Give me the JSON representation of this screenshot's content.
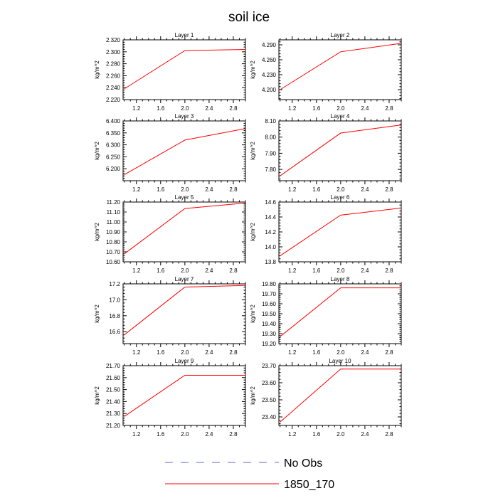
{
  "title": "soil ice",
  "colors": {
    "series": "#ff0000",
    "obs": "#6a6ac8",
    "axis": "#000000"
  },
  "legend": [
    {
      "label": "No Obs",
      "style": "dashed",
      "color": "#6a6ac8"
    },
    {
      "label": "1850_170",
      "style": "solid",
      "color": "#ff0000"
    }
  ],
  "chart_data": [
    {
      "type": "line",
      "title": "Layer 1",
      "ylabel": "kg/m^2",
      "x": [
        1,
        2,
        3
      ],
      "xlim": [
        0.98,
        3.0
      ],
      "xticks": [
        "1.2",
        "1.6",
        "2.0",
        "2.4",
        "2.8"
      ],
      "ylim": [
        2.22,
        2.32
      ],
      "yticks": [
        "2.220",
        "2.240",
        "2.260",
        "2.280",
        "2.300",
        "2.320"
      ],
      "series": [
        {
          "values": [
            2.238,
            2.302,
            2.304
          ]
        }
      ]
    },
    {
      "type": "line",
      "title": "Layer 2",
      "ylabel": "kg/m^2",
      "x": [
        1,
        2,
        3
      ],
      "xlim": [
        0.98,
        3.0
      ],
      "xticks": [
        "1.2",
        "1.6",
        "2.0",
        "2.4",
        "2.8"
      ],
      "ylim": [
        4.18,
        4.3
      ],
      "yticks": [
        "4.200",
        "4.230",
        "4.260",
        "4.290"
      ],
      "series": [
        {
          "values": [
            4.2,
            4.276,
            4.293
          ]
        }
      ]
    },
    {
      "type": "line",
      "title": "Layer 3",
      "ylabel": "kg/m^2",
      "x": [
        1,
        2,
        3
      ],
      "xlim": [
        0.98,
        3.0
      ],
      "xticks": [
        "1.2",
        "1.6",
        "2.0",
        "2.4",
        "2.8"
      ],
      "ylim": [
        6.15,
        6.4
      ],
      "yticks": [
        "6.200",
        "6.250",
        "6.300",
        "6.350",
        "6.400"
      ],
      "series": [
        {
          "values": [
            6.175,
            6.32,
            6.368
          ]
        }
      ]
    },
    {
      "type": "line",
      "title": "Layer 4",
      "ylabel": "kg/m^2",
      "x": [
        1,
        2,
        3
      ],
      "xlim": [
        0.98,
        3.0
      ],
      "xticks": [
        "1.2",
        "1.6",
        "2.0",
        "2.4",
        "2.8"
      ],
      "ylim": [
        7.73,
        8.1
      ],
      "yticks": [
        "7.80",
        "7.90",
        "8.00",
        "8.10"
      ],
      "series": [
        {
          "values": [
            7.76,
            8.025,
            8.075
          ]
        }
      ]
    },
    {
      "type": "line",
      "title": "Layer 5",
      "ylabel": "kg/m^2",
      "x": [
        1,
        2,
        3
      ],
      "xlim": [
        0.98,
        3.0
      ],
      "xticks": [
        "1.2",
        "1.6",
        "2.0",
        "2.4",
        "2.8"
      ],
      "ylim": [
        10.6,
        11.2
      ],
      "yticks": [
        "10.60",
        "10.70",
        "10.80",
        "10.90",
        "11.00",
        "11.10",
        "11.20"
      ],
      "series": [
        {
          "values": [
            10.68,
            11.135,
            11.19
          ]
        }
      ]
    },
    {
      "type": "line",
      "title": "Layer 6",
      "ylabel": "kg/m^2",
      "x": [
        1,
        2,
        3
      ],
      "xlim": [
        0.98,
        3.0
      ],
      "xticks": [
        "1.2",
        "1.6",
        "2.0",
        "2.4",
        "2.8"
      ],
      "ylim": [
        13.8,
        14.6
      ],
      "yticks": [
        "13.8",
        "14.0",
        "14.2",
        "14.4",
        "14.6"
      ],
      "series": [
        {
          "values": [
            13.88,
            14.425,
            14.52
          ]
        }
      ]
    },
    {
      "type": "line",
      "title": "Layer 7",
      "ylabel": "kg/m^2",
      "x": [
        1,
        2,
        3
      ],
      "xlim": [
        0.98,
        3.0
      ],
      "xticks": [
        "1.2",
        "1.6",
        "2.0",
        "2.4",
        "2.8"
      ],
      "ylim": [
        16.45,
        17.2
      ],
      "yticks": [
        "16.6",
        "16.8",
        "17.0",
        "17.2"
      ],
      "series": [
        {
          "values": [
            16.56,
            17.16,
            17.18
          ]
        }
      ]
    },
    {
      "type": "line",
      "title": "Layer 8",
      "ylabel": "kg/m^2",
      "x": [
        1,
        2,
        3
      ],
      "xlim": [
        0.98,
        3.0
      ],
      "xticks": [
        "1.2",
        "1.6",
        "2.0",
        "2.4",
        "2.8"
      ],
      "ylim": [
        19.2,
        19.8
      ],
      "yticks": [
        "19.20",
        "19.30",
        "19.40",
        "19.50",
        "19.60",
        "19.70",
        "19.80"
      ],
      "series": [
        {
          "values": [
            19.27,
            19.76,
            19.76
          ]
        }
      ]
    },
    {
      "type": "line",
      "title": "Layer 9",
      "ylabel": "kg/m^2",
      "x": [
        1,
        2,
        3
      ],
      "xlim": [
        0.98,
        3.0
      ],
      "xticks": [
        "1.2",
        "1.6",
        "2.0",
        "2.4",
        "2.8"
      ],
      "ylim": [
        21.2,
        21.7
      ],
      "yticks": [
        "21.20",
        "21.30",
        "21.40",
        "21.50",
        "21.60",
        "21.70"
      ],
      "series": [
        {
          "values": [
            21.275,
            21.62,
            21.62
          ]
        }
      ]
    },
    {
      "type": "line",
      "title": "Layer 10",
      "ylabel": "kg/m^2",
      "x": [
        1,
        2,
        3
      ],
      "xlim": [
        0.98,
        3.0
      ],
      "xticks": [
        "1.2",
        "1.6",
        "2.0",
        "2.4",
        "2.8"
      ],
      "ylim": [
        23.35,
        23.7
      ],
      "yticks": [
        "23.40",
        "23.50",
        "23.60",
        "23.70"
      ],
      "series": [
        {
          "values": [
            23.37,
            23.68,
            23.68
          ]
        }
      ]
    }
  ]
}
